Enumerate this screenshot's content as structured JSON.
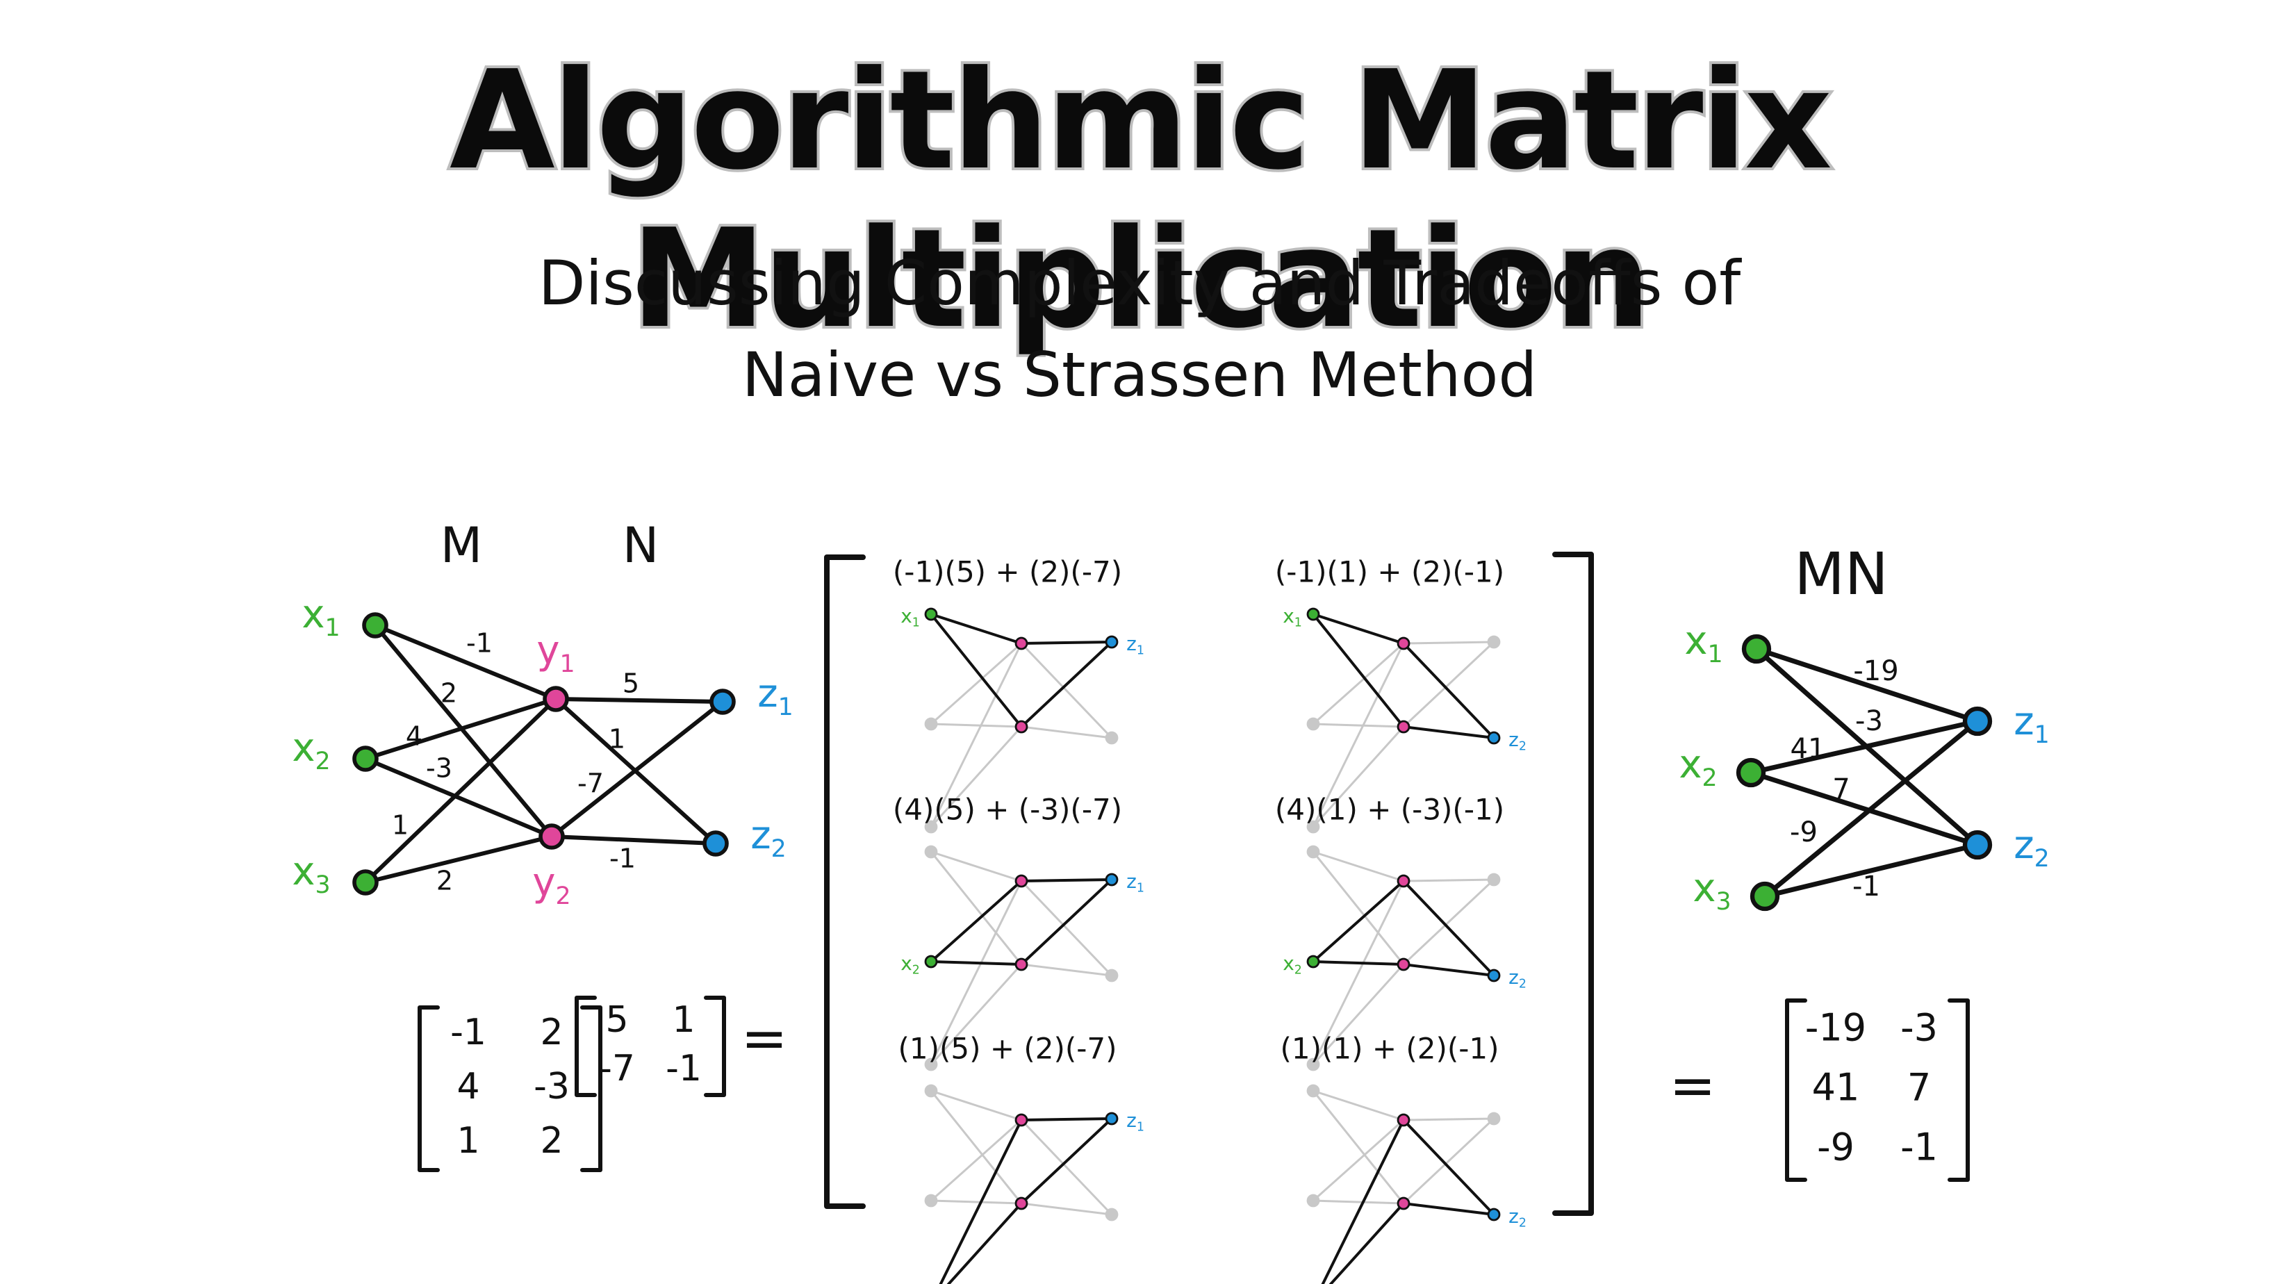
{
  "title": "Algorithmic Matrix Multiplication",
  "subtitle_line1": "Discussing Complexity and Tradeoffs of",
  "subtitle_line2": "Naive vs Strassen Method",
  "colors": {
    "x_nodes": "#3cb034",
    "y_nodes": "#e0469a",
    "z_nodes": "#1e90d8",
    "ink": "#111111",
    "faded": "#c8c8c8"
  },
  "graph": {
    "label_m": "M",
    "label_n": "N",
    "x_labels": [
      "x1",
      "x2",
      "x3"
    ],
    "y_labels": [
      "y1",
      "y2"
    ],
    "z_labels": [
      "z1",
      "z2"
    ],
    "m_weights": [
      [
        "-1",
        "2"
      ],
      [
        "4",
        "-3"
      ],
      [
        "1",
        "2"
      ]
    ],
    "n_weights": [
      [
        "5",
        "1"
      ],
      [
        "-7",
        "-1"
      ]
    ]
  },
  "equation": {
    "m_matrix": [
      [
        "-1",
        "2"
      ],
      [
        "4",
        "-3"
      ],
      [
        "1",
        "2"
      ]
    ],
    "n_matrix": [
      [
        "5",
        "1"
      ],
      [
        "-7",
        "-1"
      ]
    ],
    "equals": "="
  },
  "products": [
    {
      "expr": "(-1)(5) + (2)(-7)",
      "row": 0,
      "col": 0
    },
    {
      "expr": "(-1)(1) + (2)(-1)",
      "row": 0,
      "col": 1
    },
    {
      "expr": "(4)(5) + (-3)(-7)",
      "row": 1,
      "col": 0
    },
    {
      "expr": "(4)(1) + (-3)(-1)",
      "row": 1,
      "col": 1
    },
    {
      "expr": "(1)(5) + (2)(-7)",
      "row": 2,
      "col": 0
    },
    {
      "expr": "(1)(1) + (2)(-1)",
      "row": 2,
      "col": 1
    }
  ],
  "result": {
    "label": "MN",
    "x_labels": [
      "x1",
      "x2",
      "x3"
    ],
    "z_labels": [
      "z1",
      "z2"
    ],
    "weights": [
      [
        "-19",
        "-3"
      ],
      [
        "41",
        "7"
      ],
      [
        "-9",
        "-1"
      ]
    ],
    "matrix": [
      [
        "-19",
        "-3"
      ],
      [
        "41",
        "7"
      ],
      [
        "-9",
        "-1"
      ]
    ],
    "equals": "="
  }
}
